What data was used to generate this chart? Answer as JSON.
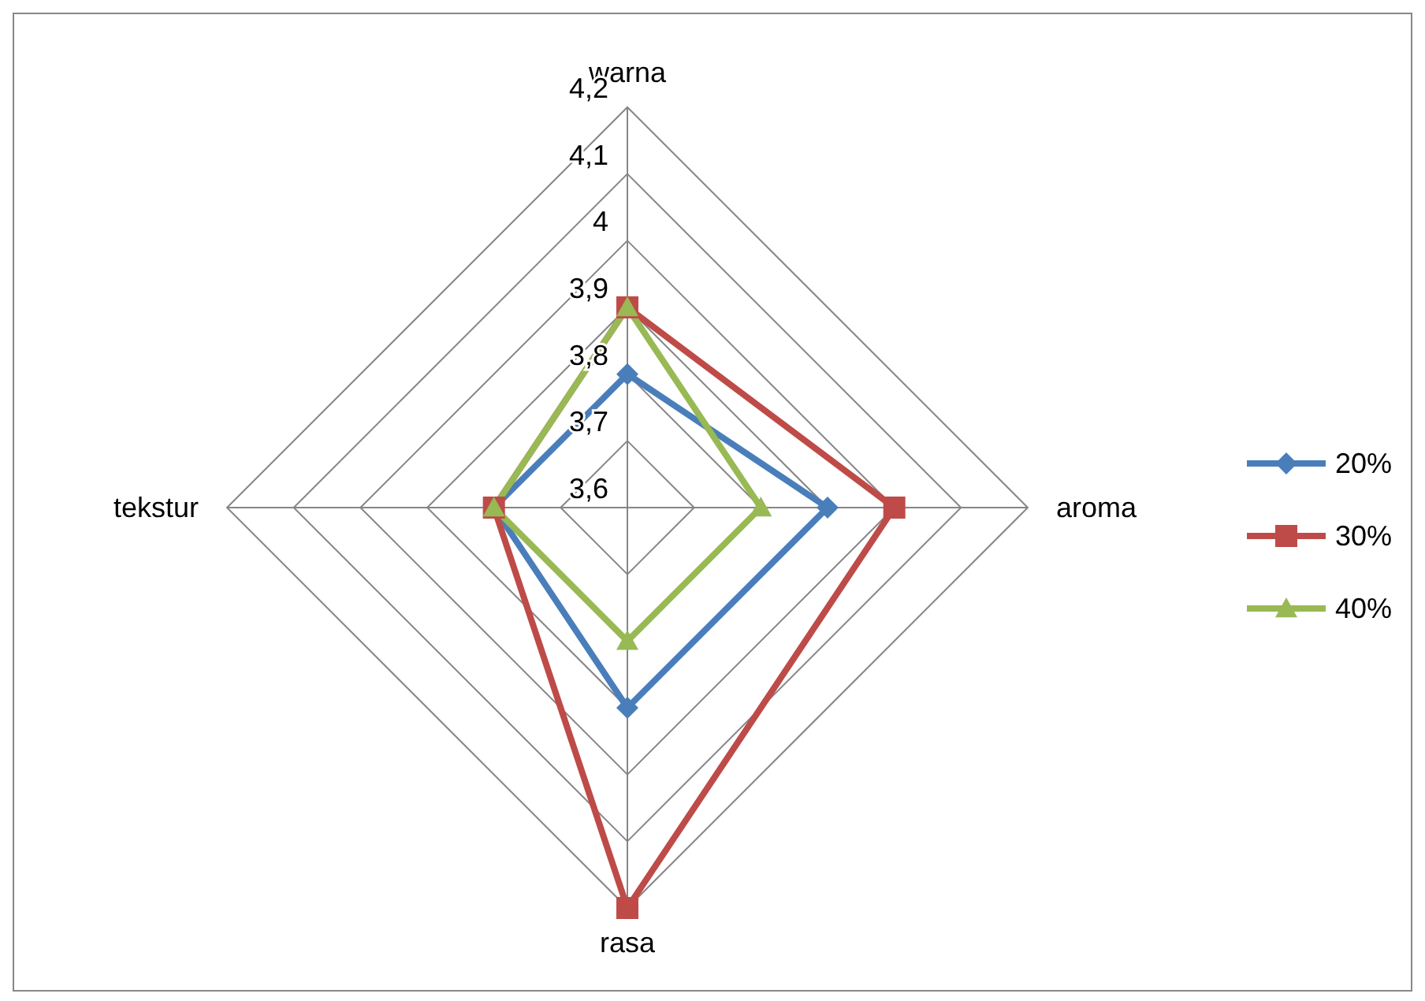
{
  "chart_data": {
    "type": "radar",
    "categories": [
      "warna",
      "aroma",
      "rasa",
      "tekstur"
    ],
    "series": [
      {
        "name": "20%",
        "color": "#4a7ebb",
        "values": [
          3.8,
          3.9,
          3.9,
          3.8
        ],
        "marker": "diamond"
      },
      {
        "name": "30%",
        "color": "#be4b48",
        "values": [
          3.9,
          4.0,
          4.2,
          3.8
        ],
        "marker": "square"
      },
      {
        "name": "40%",
        "color": "#98b954",
        "values": [
          3.9,
          3.8,
          3.8,
          3.8
        ],
        "marker": "triangle"
      }
    ],
    "ylim": [
      3.6,
      4.2
    ],
    "yticks": [
      {
        "value": 3.6,
        "label": "3,6"
      },
      {
        "value": 3.7,
        "label": "3,7"
      },
      {
        "value": 3.8,
        "label": "3,8"
      },
      {
        "value": 3.9,
        "label": "3,9"
      },
      {
        "value": 4,
        "label": "4"
      },
      {
        "value": 4.1,
        "label": "4,1"
      },
      {
        "value": 4.2,
        "label": "4,2"
      }
    ],
    "grid": true,
    "legend": "right"
  }
}
